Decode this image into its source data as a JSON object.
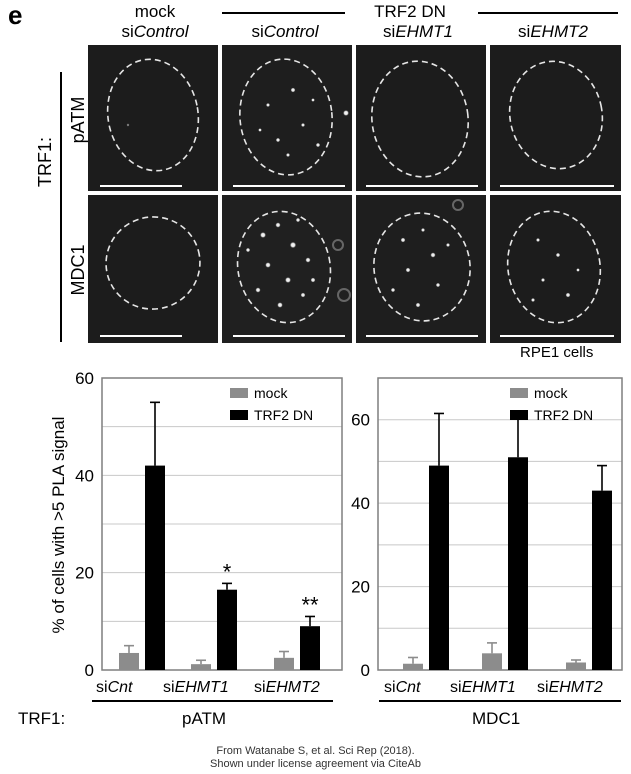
{
  "panel_letter": "e",
  "header": {
    "group_label": "TRF2 DN",
    "columns": [
      {
        "top": "mock",
        "prefix": "si",
        "gene": "Control"
      },
      {
        "top": "",
        "prefix": "si",
        "gene": "Control"
      },
      {
        "top": "",
        "prefix": "si",
        "gene": "EHMT1"
      },
      {
        "top": "",
        "prefix": "si",
        "gene": "EHMT2"
      }
    ]
  },
  "row_labels": {
    "side": "TRF1:",
    "rows": [
      "pATM",
      "MDC1"
    ]
  },
  "cell_line": "RPE1 cells",
  "y_axis_label": "% of  cells with >5 PLA signal",
  "legend": {
    "mock": "mock",
    "trf2": "TRF2 DN"
  },
  "x_tick_labels": [
    {
      "prefix": "si",
      "gene": "Cnt"
    },
    {
      "prefix": "si",
      "gene": "EHMT1"
    },
    {
      "prefix": "si",
      "gene": "EHMT2"
    }
  ],
  "group_labels": {
    "trf1": "TRF1:",
    "left": "pATM",
    "right": "MDC1"
  },
  "credit": [
    "From Watanabe S, et al. Sci Rep (2018).",
    "Shown under license agreement via CiteAb"
  ],
  "colors": {
    "mock": "#8c8c8c",
    "trf2": "#000000",
    "grid": "#c8c8c8",
    "frame": "#7f7f7f"
  },
  "chart_data": [
    {
      "type": "bar",
      "title": "pATM",
      "categories": [
        "siCnt",
        "siEHMT1",
        "siEHMT2"
      ],
      "ylim": [
        0,
        60
      ],
      "yticks": [
        0,
        20,
        40,
        60
      ],
      "series": [
        {
          "name": "mock",
          "values": [
            3.5,
            1.2,
            2.5
          ],
          "errors": [
            1.5,
            0.8,
            1.3
          ]
        },
        {
          "name": "TRF2 DN",
          "values": [
            42,
            16.5,
            9
          ],
          "errors": [
            13,
            1.3,
            2
          ]
        }
      ],
      "annotations": [
        "",
        "*",
        "**"
      ],
      "legend_position": "top-right"
    },
    {
      "type": "bar",
      "title": "MDC1",
      "categories": [
        "siCnt",
        "siEHMT1",
        "siEHMT2"
      ],
      "ylim": [
        0,
        70
      ],
      "yticks": [
        0,
        20,
        40,
        60
      ],
      "series": [
        {
          "name": "mock",
          "values": [
            1.5,
            4,
            1.8
          ],
          "errors": [
            1.5,
            2.5,
            0.6
          ]
        },
        {
          "name": "TRF2 DN",
          "values": [
            49,
            51,
            43
          ],
          "errors": [
            12.5,
            11,
            6
          ]
        }
      ],
      "annotations": [
        "",
        "",
        ""
      ],
      "legend_position": "top-right"
    }
  ]
}
